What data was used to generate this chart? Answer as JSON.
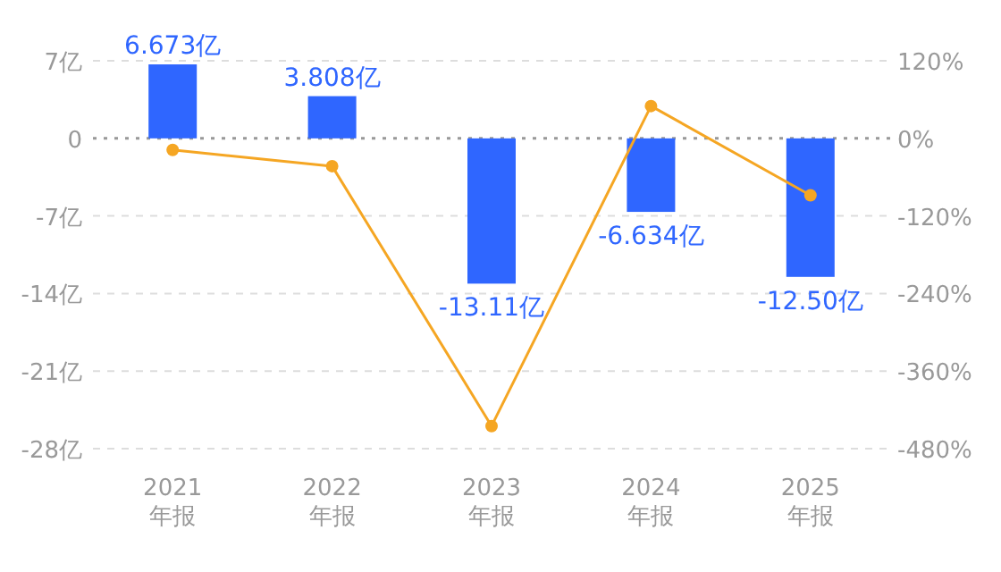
{
  "chart_data": {
    "type": "bar",
    "categories": [
      "2021\n年报",
      "2022\n年报",
      "2023\n年报",
      "2024\n年报",
      "2025\n年报"
    ],
    "series": [
      {
        "color": "#2f66ff",
        "values": [
          6.673,
          3.808,
          -13.11,
          -6.634,
          -12.5
        ],
        "value_labels": [
          "6.673亿",
          "3.808亿",
          "-13.11亿",
          "-6.634亿",
          "-12.50亿"
        ]
      },
      {
        "type": "line",
        "axis": "y2",
        "color": "#f5a623",
        "marker": "circle",
        "values": [
          -18,
          -43,
          -445,
          50,
          -88
        ]
      }
    ],
    "ylim": [
      -28,
      7
    ],
    "yticks": [
      {
        "value": 7,
        "label": "7亿"
      },
      0,
      {
        "value": -7,
        "label": "-7亿"
      },
      {
        "value": -14,
        "label": "-14亿"
      },
      {
        "value": -21,
        "label": "-21亿"
      },
      {
        "value": -28,
        "label": "-28亿"
      }
    ],
    "y2lim": [
      -480,
      120
    ],
    "y2ticks": [
      {
        "value": 120,
        "label": "120%"
      },
      {
        "value": 0,
        "label": "0%"
      },
      {
        "value": -120,
        "label": "-120%"
      },
      {
        "value": -240,
        "label": "-240%"
      },
      {
        "value": -360,
        "label": "-360%"
      },
      {
        "value": -480,
        "label": "-480%"
      }
    ],
    "ref_lines": [
      {
        "axis": "y",
        "value": 0,
        "color": "#999999",
        "line_style": "dotted"
      }
    ],
    "grid": "y"
  }
}
